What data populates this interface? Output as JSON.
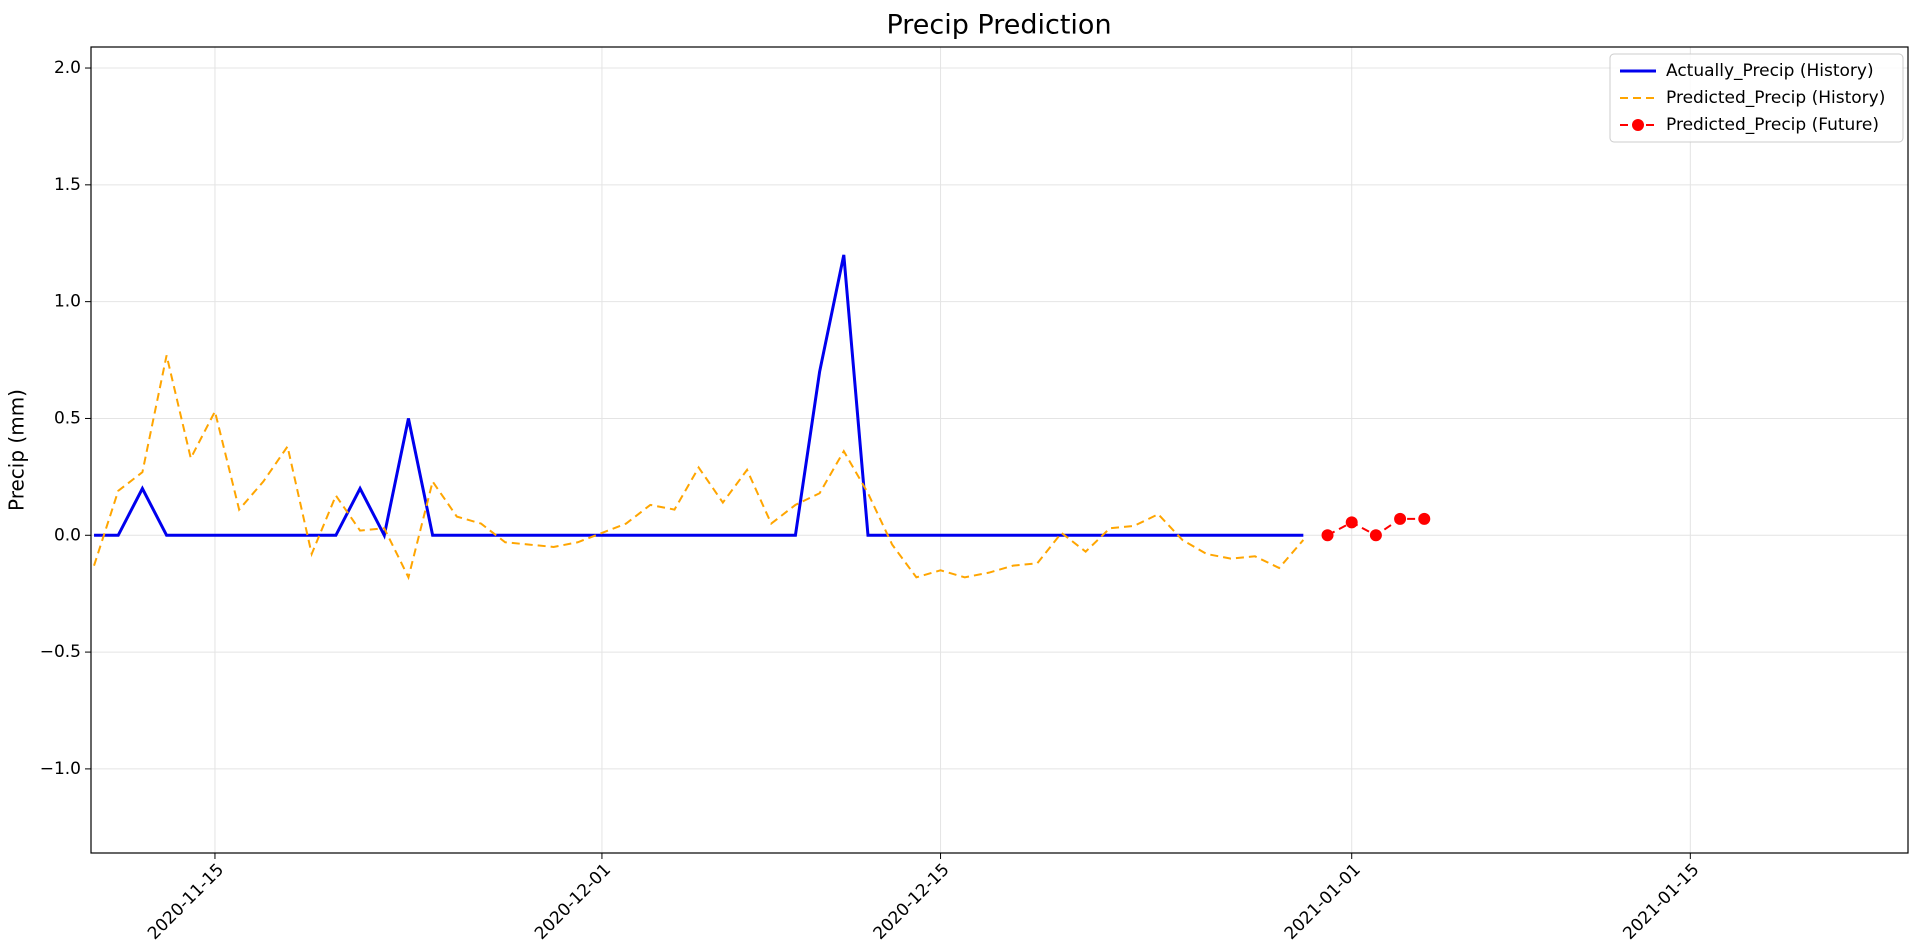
{
  "chart_data": {
    "type": "line",
    "title": "Precip Prediction",
    "y_label": "Precip (mm)",
    "x": [
      "2020-11-10",
      "2020-11-11",
      "2020-11-12",
      "2020-11-13",
      "2020-11-14",
      "2020-11-15",
      "2020-11-16",
      "2020-11-17",
      "2020-11-18",
      "2020-11-19",
      "2020-11-20",
      "2020-11-21",
      "2020-11-22",
      "2020-11-23",
      "2020-11-24",
      "2020-11-25",
      "2020-11-26",
      "2020-11-27",
      "2020-11-28",
      "2020-11-29",
      "2020-11-30",
      "2020-12-01",
      "2020-12-02",
      "2020-12-03",
      "2020-12-04",
      "2020-12-05",
      "2020-12-06",
      "2020-12-07",
      "2020-12-08",
      "2020-12-09",
      "2020-12-10",
      "2020-12-11",
      "2020-12-12",
      "2020-12-13",
      "2020-12-14",
      "2020-12-15",
      "2020-12-16",
      "2020-12-17",
      "2020-12-18",
      "2020-12-19",
      "2020-12-20",
      "2020-12-21",
      "2020-12-22",
      "2020-12-23",
      "2020-12-24",
      "2020-12-25",
      "2020-12-26",
      "2020-12-27",
      "2020-12-28",
      "2020-12-29",
      "2020-12-30",
      "2020-12-31",
      "2021-01-01",
      "2021-01-02",
      "2021-01-03",
      "2021-01-04"
    ],
    "series": [
      {
        "name": "Actually_Precip (History)",
        "color": "#0000ee",
        "style": "solid",
        "values": [
          0,
          0,
          0.2,
          0,
          0,
          0,
          0,
          0,
          0,
          0,
          0,
          0.2,
          0,
          0.5,
          0,
          0,
          0,
          0,
          0,
          0,
          0,
          0,
          0,
          0,
          0,
          0,
          0,
          0,
          0,
          0,
          0.7,
          1.2,
          0,
          0,
          0,
          0,
          0,
          0,
          0,
          0,
          0,
          0,
          0,
          0,
          0,
          0,
          0,
          0,
          0,
          0,
          0,
          null,
          null,
          null,
          null,
          null
        ]
      },
      {
        "name": "Predicted_Precip (History)",
        "color": "#ffa500",
        "style": "dashed",
        "values": [
          -0.13,
          0.19,
          0.27,
          0.77,
          0.33,
          0.53,
          0.11,
          0.23,
          0.38,
          -0.08,
          0.17,
          0.02,
          0.03,
          -0.18,
          0.23,
          0.08,
          0.05,
          -0.03,
          -0.04,
          -0.05,
          -0.03,
          0.01,
          0.05,
          0.13,
          0.11,
          0.29,
          0.14,
          0.28,
          0.05,
          0.13,
          0.18,
          0.36,
          0.18,
          -0.04,
          -0.18,
          -0.15,
          -0.18,
          -0.16,
          -0.13,
          -0.12,
          0.01,
          -0.07,
          0.03,
          0.04,
          0.09,
          -0.02,
          -0.08,
          -0.1,
          -0.09,
          -0.14,
          -0.02,
          null,
          null,
          null,
          null,
          null
        ]
      },
      {
        "name": "Predicted_Precip (Future)",
        "color": "#ff0000",
        "style": "dashed-marker",
        "values": [
          null,
          null,
          null,
          null,
          null,
          null,
          null,
          null,
          null,
          null,
          null,
          null,
          null,
          null,
          null,
          null,
          null,
          null,
          null,
          null,
          null,
          null,
          null,
          null,
          null,
          null,
          null,
          null,
          null,
          null,
          null,
          null,
          null,
          null,
          null,
          null,
          null,
          null,
          null,
          null,
          null,
          null,
          null,
          null,
          null,
          null,
          null,
          null,
          null,
          null,
          null,
          0,
          0.055,
          0,
          0.07,
          0.07
        ]
      }
    ],
    "xlim": [
      "2020-11-10",
      "2021-01-24"
    ],
    "xticks": [
      "2020-11-15",
      "2020-12-01",
      "2020-12-15",
      "2021-01-01",
      "2021-01-15"
    ],
    "ylim": [
      -1.36,
      2.09
    ],
    "yticks": [
      {
        "value": -1,
        "label": "−1.0"
      },
      {
        "value": -0.5,
        "label": "−0.5"
      },
      {
        "value": 0,
        "label": "0.0"
      },
      {
        "value": 0.5,
        "label": "0.5"
      },
      {
        "value": 1,
        "label": "1.0"
      },
      {
        "value": 1.5,
        "label": "1.5"
      },
      {
        "value": 2,
        "label": "2.0"
      }
    ],
    "grid": true,
    "legend": "upper right"
  }
}
